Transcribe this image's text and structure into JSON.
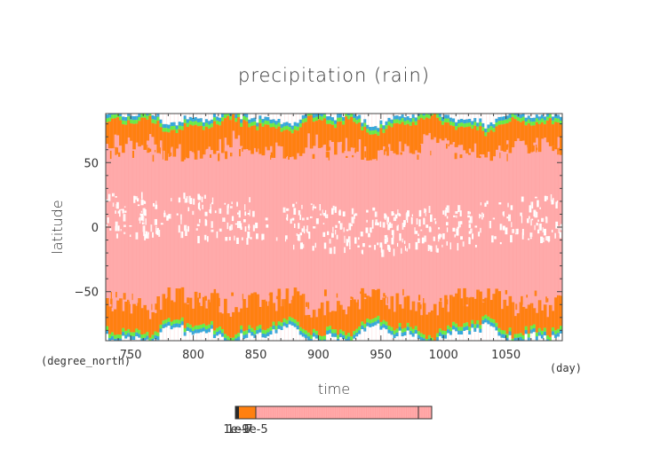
{
  "chart_data": {
    "type": "heatmap",
    "title": "precipitation (rain)",
    "xlabel": "time",
    "ylabel": "latitude",
    "x_unit": "(day)",
    "y_unit": "(degree_north)",
    "xlim": [
      730,
      1095
    ],
    "ylim": [
      -88,
      88
    ],
    "x_ticks": [
      750,
      800,
      850,
      900,
      950,
      1000,
      1050
    ],
    "y_ticks": [
      50,
      0,
      -50
    ],
    "x_tick_labels": [
      "750",
      "800",
      "850",
      "900",
      "950",
      "1000",
      "1050"
    ],
    "y_tick_labels": [
      "50",
      "0",
      "−50"
    ],
    "colorbar": {
      "tick_labels": [
        "1e-9",
        "1e-7",
        "1e-5"
      ],
      "colors": [
        "#2a2a2a",
        "#ff8010",
        "#ffaaaa"
      ]
    },
    "colors": {
      "background": "#ffaaaa",
      "band_orange": "#ff8010",
      "band_green": "#66ee44",
      "band_blue": "#33aadd",
      "equator_gap": "#ffffff"
    },
    "rain_band_edge_north_deg": 72,
    "rain_band_edge_south_deg": -70,
    "equatorial_dry_center_deg": 5
  }
}
